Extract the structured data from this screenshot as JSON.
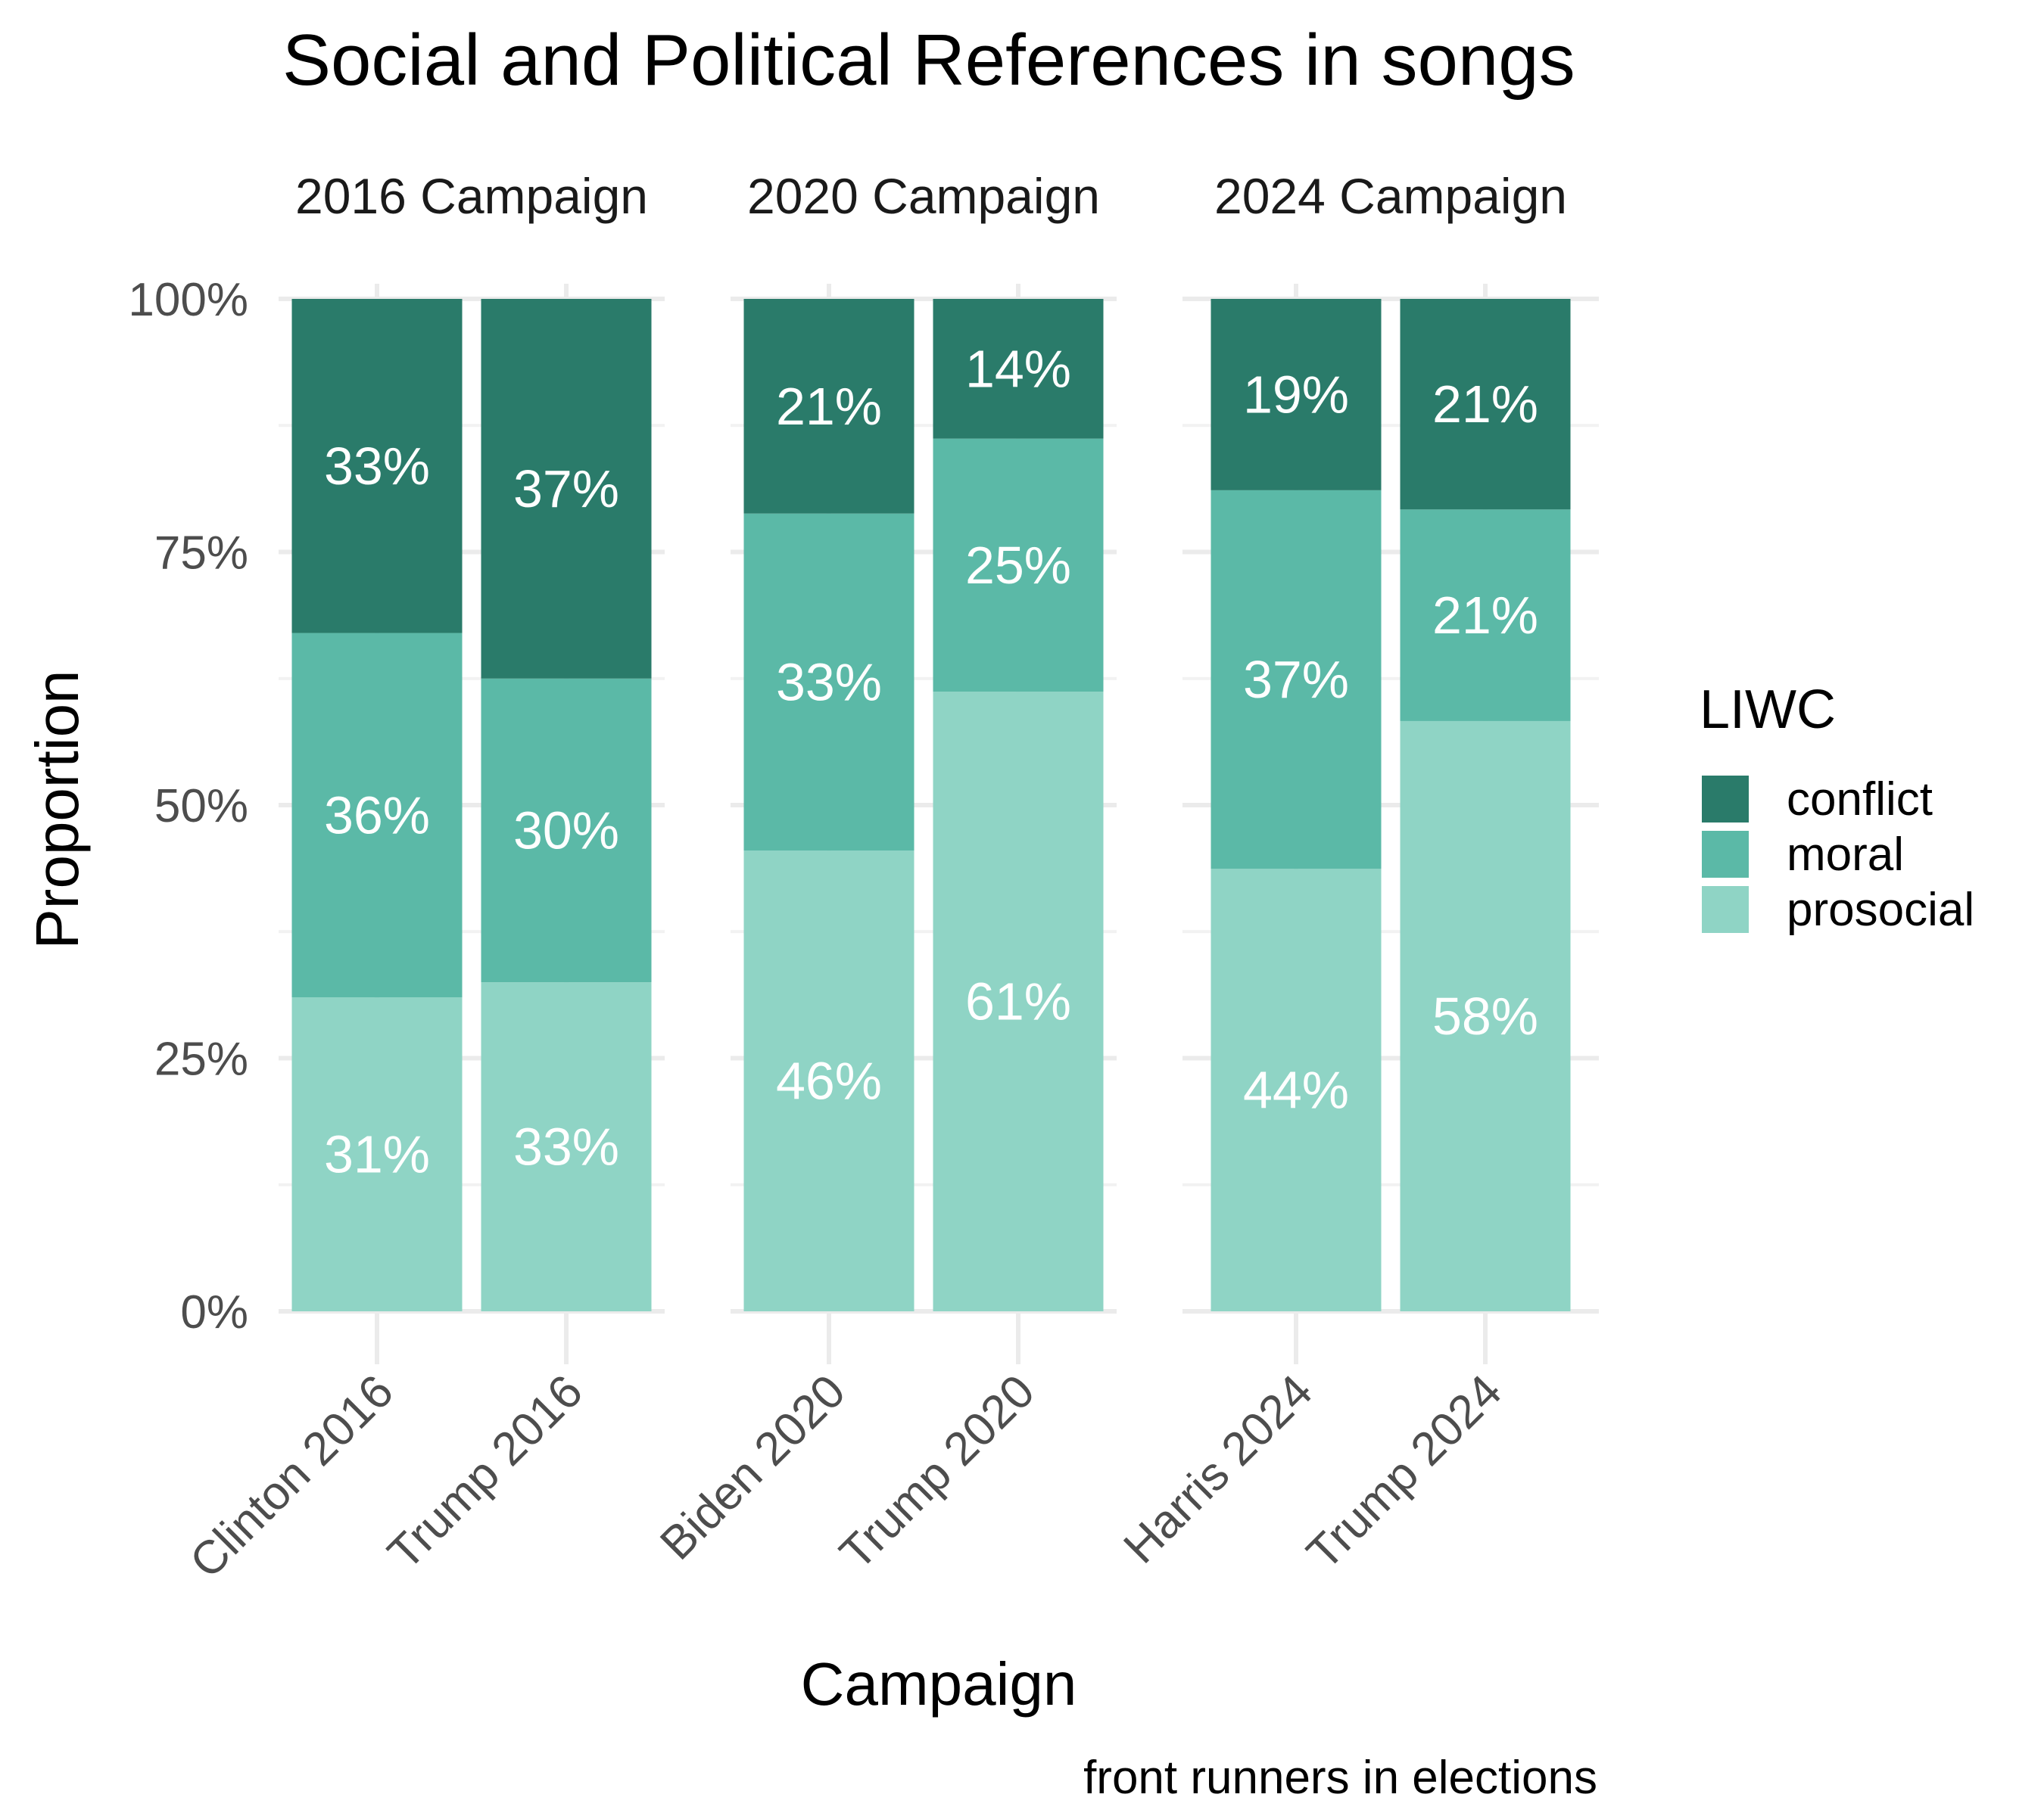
{
  "chart_data": {
    "type": "bar",
    "stacked": true,
    "title": "Social and Political References in songs",
    "xlabel": "Campaign",
    "ylabel": "Proportion",
    "caption": "front runners in elections",
    "ylim": [
      0,
      1
    ],
    "y_ticks": [
      "0%",
      "25%",
      "50%",
      "75%",
      "100%"
    ],
    "y_tick_values": [
      0,
      0.25,
      0.5,
      0.75,
      1.0
    ],
    "legend": {
      "title": "LIWC",
      "placement": "right",
      "entries": [
        "conflict",
        "moral",
        "prosocial"
      ]
    },
    "colors": {
      "conflict": "#2a7b6a",
      "moral": "#5bb9a7",
      "prosocial": "#8fd4c5"
    },
    "panels": [
      {
        "label": "2016 Campaign",
        "categories": [
          "Clinton 2016",
          "Trump 2016"
        ],
        "series": [
          {
            "name": "prosocial",
            "values": [
              0.31,
              0.325
            ],
            "labels": [
              "31%",
              "33%"
            ]
          },
          {
            "name": "moral",
            "values": [
              0.36,
              0.3
            ],
            "labels": [
              "36%",
              "30%"
            ]
          },
          {
            "name": "conflict",
            "values": [
              0.33,
              0.375
            ],
            "labels": [
              "33%",
              "37%"
            ]
          }
        ]
      },
      {
        "label": "2020 Campaign",
        "categories": [
          "Biden 2020",
          "Trump 2020"
        ],
        "series": [
          {
            "name": "prosocial",
            "values": [
              0.455,
              0.612
            ],
            "labels": [
              "46%",
              "61%"
            ]
          },
          {
            "name": "moral",
            "values": [
              0.333,
              0.25
            ],
            "labels": [
              "33%",
              "25%"
            ]
          },
          {
            "name": "conflict",
            "values": [
              0.212,
              0.138
            ],
            "labels": [
              "21%",
              "14%"
            ]
          }
        ]
      },
      {
        "label": "2024 Campaign",
        "categories": [
          "Harris 2024",
          "Trump 2024"
        ],
        "series": [
          {
            "name": "prosocial",
            "values": [
              0.437,
              0.583
            ],
            "labels": [
              "44%",
              "58%"
            ]
          },
          {
            "name": "moral",
            "values": [
              0.374,
              0.209
            ],
            "labels": [
              "37%",
              "21%"
            ]
          },
          {
            "name": "conflict",
            "values": [
              0.189,
              0.208
            ],
            "labels": [
              "19%",
              "21%"
            ]
          }
        ]
      }
    ]
  }
}
